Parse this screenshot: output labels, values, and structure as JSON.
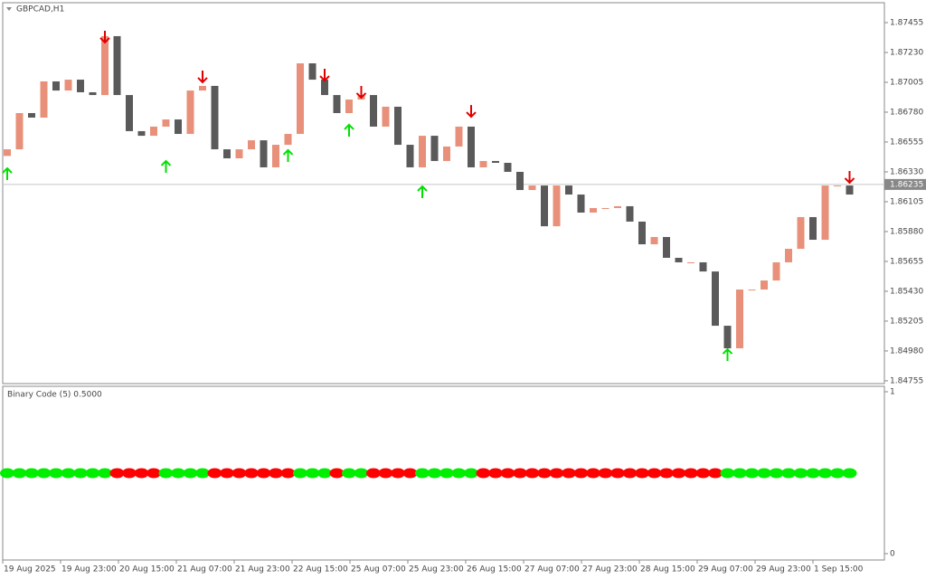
{
  "chart_data": {
    "type": "candlestick",
    "symbol": "GBPCAD,H1",
    "current_price": 1.86235,
    "up_color": "#e8907a",
    "down_color": "#5a5a5a",
    "open": [
      1.8645,
      1.865,
      1.86773,
      1.86739,
      1.87012,
      1.86943,
      1.87025,
      1.8693,
      1.86909,
      1.87353,
      1.86909,
      1.86637,
      1.86602,
      1.86671,
      1.86725,
      1.86616,
      1.86943,
      1.86978,
      1.865,
      1.86432,
      1.865,
      1.86568,
      1.86364,
      1.86534,
      1.86616,
      1.87148,
      1.87025,
      1.86909,
      1.86773,
      1.86875,
      1.86909,
      1.86671,
      1.86821,
      1.86534,
      1.86364,
      1.86602,
      1.86412,
      1.86521,
      1.86671,
      1.86364,
      1.86412,
      1.86398,
      1.8633,
      1.86193,
      1.86227,
      1.8592,
      1.86227,
      1.86159,
      1.86023,
      1.86057,
      1.86057,
      1.86071,
      1.85955,
      1.85784,
      1.85839,
      1.85682,
      1.85648,
      1.85648,
      1.85579,
      1.8517,
      1.85,
      1.85443,
      1.85443,
      1.85511,
      1.85648,
      1.8575,
      1.85989,
      1.85818,
      1.86227,
      1.86227
    ],
    "close": [
      1.865,
      1.86773,
      1.86739,
      1.87012,
      1.86943,
      1.87025,
      1.8693,
      1.86909,
      1.87353,
      1.86909,
      1.86637,
      1.86602,
      1.86671,
      1.86725,
      1.86616,
      1.86943,
      1.86978,
      1.865,
      1.86432,
      1.865,
      1.86568,
      1.86364,
      1.86534,
      1.86616,
      1.87148,
      1.87025,
      1.86909,
      1.86773,
      1.86875,
      1.86909,
      1.86671,
      1.86821,
      1.86534,
      1.86364,
      1.86602,
      1.86412,
      1.86521,
      1.86671,
      1.86364,
      1.86412,
      1.86398,
      1.8633,
      1.86193,
      1.86227,
      1.8592,
      1.86227,
      1.86159,
      1.86023,
      1.86057,
      1.86057,
      1.86071,
      1.85955,
      1.85784,
      1.85839,
      1.85682,
      1.85648,
      1.85648,
      1.85579,
      1.8517,
      1.85,
      1.85443,
      1.85443,
      1.85511,
      1.85648,
      1.8575,
      1.85989,
      1.85818,
      1.86227,
      1.86227,
      1.86159
    ],
    "signals": [
      {
        "x": 0,
        "y": 1.86309,
        "dir": "up",
        "color": "#00e000"
      },
      {
        "x": 13,
        "y": 1.86364,
        "dir": "up",
        "color": "#00e000"
      },
      {
        "x": 23,
        "y": 1.86446,
        "dir": "up",
        "color": "#00e000"
      },
      {
        "x": 28,
        "y": 1.86637,
        "dir": "up",
        "color": "#00e000"
      },
      {
        "x": 34,
        "y": 1.86173,
        "dir": "up",
        "color": "#00e000"
      },
      {
        "x": 59,
        "y": 1.84945,
        "dir": "up",
        "color": "#00e000"
      },
      {
        "x": 8,
        "y": 1.87353,
        "dir": "down",
        "color": "#e00000"
      },
      {
        "x": 16,
        "y": 1.87053,
        "dir": "down",
        "color": "#e00000"
      },
      {
        "x": 26,
        "y": 1.87066,
        "dir": "down",
        "color": "#e00000"
      },
      {
        "x": 29,
        "y": 1.86937,
        "dir": "down",
        "color": "#e00000"
      },
      {
        "x": 38,
        "y": 1.86793,
        "dir": "down",
        "color": "#e00000"
      },
      {
        "x": 69,
        "y": 1.86296,
        "dir": "down",
        "color": "#e00000"
      }
    ],
    "ylim": [
      1.84734,
      1.87605
    ],
    "yticks": [
      1.87455,
      {
        "value": 1.8723,
        "label": "1.87230"
      },
      1.87005,
      {
        "value": 1.8678,
        "label": "1.86780"
      },
      1.86555,
      {
        "value": 1.8633,
        "label": "1.86330"
      },
      1.86105,
      {
        "value": 1.8588,
        "label": "1.85880"
      },
      1.85655,
      {
        "value": 1.8543,
        "label": "1.85430"
      },
      1.85205,
      {
        "value": 1.8498,
        "label": "1.84980"
      },
      1.84755
    ],
    "time_labels": [
      "19 Aug 2025",
      "19 Aug 23:00",
      "20 Aug 15:00",
      "21 Aug 07:00",
      "21 Aug 23:00",
      "22 Aug 15:00",
      "25 Aug 07:00",
      "25 Aug 23:00",
      "26 Aug 15:00",
      "27 Aug 07:00",
      "27 Aug 23:00",
      "28 Aug 15:00",
      "29 Aug 07:00",
      "29 Aug 23:00",
      "1 Sep 15:00"
    ],
    "indicator": {
      "title": "Binary Code (5) 0.5000",
      "ylim": [
        0,
        1
      ],
      "yticks": [
        1,
        0
      ],
      "on_color": "#00ee00",
      "off_color": "#ff0000",
      "state": [
        1,
        1,
        1,
        1,
        1,
        1,
        1,
        1,
        1,
        0,
        0,
        0,
        0,
        1,
        1,
        1,
        1,
        0,
        0,
        0,
        0,
        0,
        0,
        0,
        1,
        1,
        1,
        0,
        1,
        1,
        0,
        0,
        0,
        0,
        1,
        1,
        1,
        1,
        1,
        0,
        0,
        0,
        0,
        0,
        0,
        0,
        0,
        0,
        0,
        0,
        0,
        0,
        0,
        0,
        0,
        0,
        0,
        0,
        0,
        1,
        1,
        1,
        1,
        1,
        1,
        1,
        1,
        1,
        1,
        1
      ]
    }
  }
}
